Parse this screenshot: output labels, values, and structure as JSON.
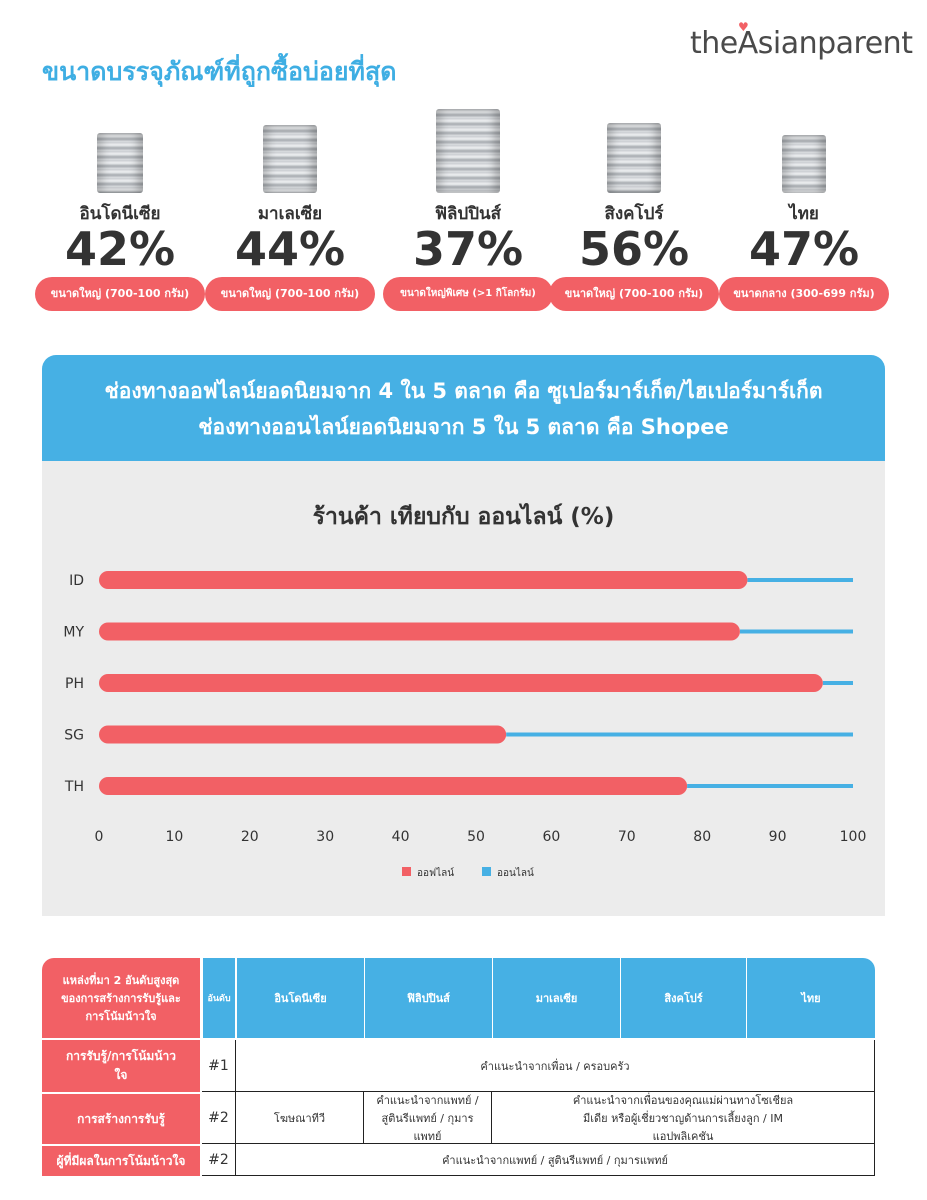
{
  "header": {
    "title": "ขนาดบรรจุภัณฑ์ที่ถูกซื้อบ่อยที่สุด",
    "logo": "theAsianparent"
  },
  "stats": [
    {
      "country": "อินโดนีเซีย",
      "percent": "42%",
      "size_label": "ขนาดใหญ่ (700-100 กรัม)"
    },
    {
      "country": "มาเลเซีย",
      "percent": "44%",
      "size_label": "ขนาดใหญ่ (700-100 กรัม)"
    },
    {
      "country": "ฟิลิปปินส์",
      "percent": "37%",
      "size_label": "ขนาดใหญ่พิเศษ (>1 กิโลกรัม)"
    },
    {
      "country": "สิงคโปร์",
      "percent": "56%",
      "size_label": "ขนาดใหญ่ (700-100 กรัม)"
    },
    {
      "country": "ไทย",
      "percent": "47%",
      "size_label": "ขนาดกลาง (300-699 กรัม)"
    }
  ],
  "banner": {
    "line1": "ช่องทางออฟไลน์ยอดนิยมจาก 4 ใน 5 ตลาด คือ ซูเปอร์มาร์เก็ต/ไฮเปอร์มาร์เก็ต",
    "line2": "ช่องทางออนไลน์ยอดนิยมจาก 5 ใน 5 ตลาด คือ Shopee"
  },
  "colors": {
    "offline": "#f26065",
    "online": "#46b0e4",
    "text": "#333333"
  },
  "chart_data": {
    "type": "bar",
    "orientation": "horizontal",
    "stacked": true,
    "title": "ร้านค้า เทียบกับ ออนไลน์ (%)",
    "categories": [
      "ID",
      "MY",
      "PH",
      "SG",
      "TH"
    ],
    "series": [
      {
        "name": "ออฟไลน์",
        "values": [
          86,
          85,
          96,
          54,
          78
        ],
        "color": "#f26065"
      },
      {
        "name": "ออนไลน์",
        "values": [
          14,
          15,
          4,
          46,
          22
        ],
        "color": "#46b0e4"
      }
    ],
    "xlim": [
      0,
      100
    ],
    "xticks": [
      0,
      10,
      20,
      30,
      40,
      50,
      60,
      70,
      80,
      90,
      100
    ],
    "legend_position": "bottom",
    "grid": false
  },
  "table": {
    "corner_header": "แหล่งที่มา 2 อันดับสูงสุดของการสร้างการรับรู้และการโน้มน้าวใจ",
    "rank_header": "อันดับ",
    "country_headers": [
      "อินโดนีเซีย",
      "ฟิลิปปินส์",
      "มาเลเซีย",
      "สิงคโปร์",
      "ไทย"
    ],
    "rows": [
      {
        "label": "การรับรู้/การโน้มน้าวใจ",
        "rank": "#1",
        "cells": [
          "คำแนะนำจากเพื่อน / ครอบครัว"
        ]
      },
      {
        "label": "การสร้างการรับรู้",
        "rank": "#2",
        "cells": [
          "โฆษณาทีวี",
          "คำแนะนำจากแพทย์ / สูตินรีแพทย์ / กุมารแพทย์",
          "คำแนะนำจากเพื่อนของคุณแม่ผ่านทางโซเชียล มีเดีย หรือผู้เชี่ยวชาญด้านการเลี้ยงลูก / IM แอปพลิเคชัน"
        ]
      },
      {
        "label": "ผู้ที่มีผลในการโน้มน้าวใจ",
        "rank": "#2",
        "cells": [
          "คำแนะนำจากแพทย์ / สูตินรีแพทย์ / กุมารแพทย์"
        ]
      }
    ]
  }
}
